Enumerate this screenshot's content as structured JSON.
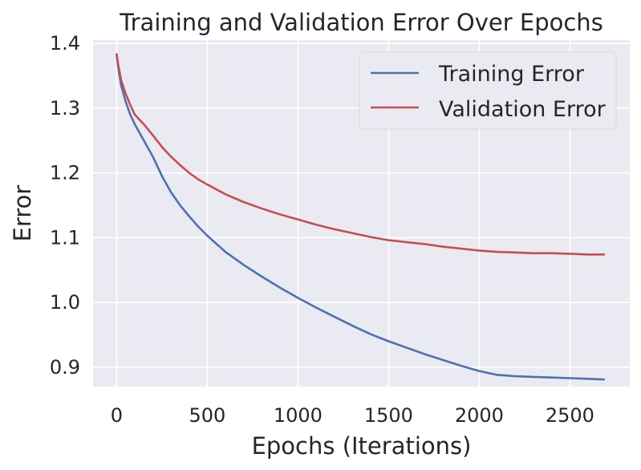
{
  "chart_data": {
    "type": "line",
    "title": "Training and Validation Error Over Epochs",
    "xlabel": "Epochs (Iterations)",
    "ylabel": "Error",
    "xlim": [
      -130,
      2830
    ],
    "ylim": [
      0.87,
      1.405
    ],
    "xticks": [
      0,
      500,
      1000,
      1500,
      2000,
      2500
    ],
    "xtick_labels": [
      "0",
      "500",
      "1000",
      "1500",
      "2000",
      "2500"
    ],
    "yticks": [
      0.9,
      1.0,
      1.1,
      1.2,
      1.3,
      1.4
    ],
    "ytick_labels": [
      "0.9",
      "1.0",
      "1.1",
      "1.2",
      "1.3",
      "1.4"
    ],
    "grid": true,
    "background": "#eaeaf2",
    "legend_position": "top-right",
    "series": [
      {
        "name": "Training Error",
        "color": "#4c72b0",
        "x": [
          0,
          10,
          25,
          50,
          75,
          100,
          150,
          200,
          250,
          300,
          350,
          400,
          450,
          500,
          600,
          700,
          800,
          900,
          1000,
          1100,
          1200,
          1300,
          1400,
          1500,
          1600,
          1700,
          1800,
          1900,
          2000,
          2100,
          2200,
          2300,
          2400,
          2500,
          2600,
          2688
        ],
        "y": [
          1.383,
          1.36,
          1.335,
          1.31,
          1.29,
          1.275,
          1.25,
          1.225,
          1.195,
          1.17,
          1.15,
          1.133,
          1.117,
          1.103,
          1.078,
          1.058,
          1.04,
          1.023,
          1.007,
          0.992,
          0.978,
          0.964,
          0.951,
          0.94,
          0.93,
          0.92,
          0.911,
          0.902,
          0.894,
          0.888,
          0.886,
          0.885,
          0.884,
          0.883,
          0.882,
          0.881
        ]
      },
      {
        "name": "Validation Error",
        "color": "#c44e52",
        "x": [
          0,
          10,
          25,
          50,
          75,
          100,
          150,
          200,
          250,
          300,
          350,
          400,
          450,
          500,
          600,
          700,
          800,
          900,
          1000,
          1100,
          1200,
          1300,
          1400,
          1500,
          1600,
          1700,
          1800,
          1900,
          2000,
          2100,
          2200,
          2300,
          2400,
          2500,
          2600,
          2688
        ],
        "y": [
          1.383,
          1.365,
          1.343,
          1.322,
          1.305,
          1.29,
          1.275,
          1.258,
          1.24,
          1.225,
          1.212,
          1.2,
          1.19,
          1.182,
          1.167,
          1.155,
          1.145,
          1.136,
          1.128,
          1.12,
          1.113,
          1.107,
          1.101,
          1.096,
          1.093,
          1.09,
          1.086,
          1.083,
          1.08,
          1.078,
          1.077,
          1.076,
          1.076,
          1.075,
          1.074,
          1.074
        ]
      }
    ]
  }
}
